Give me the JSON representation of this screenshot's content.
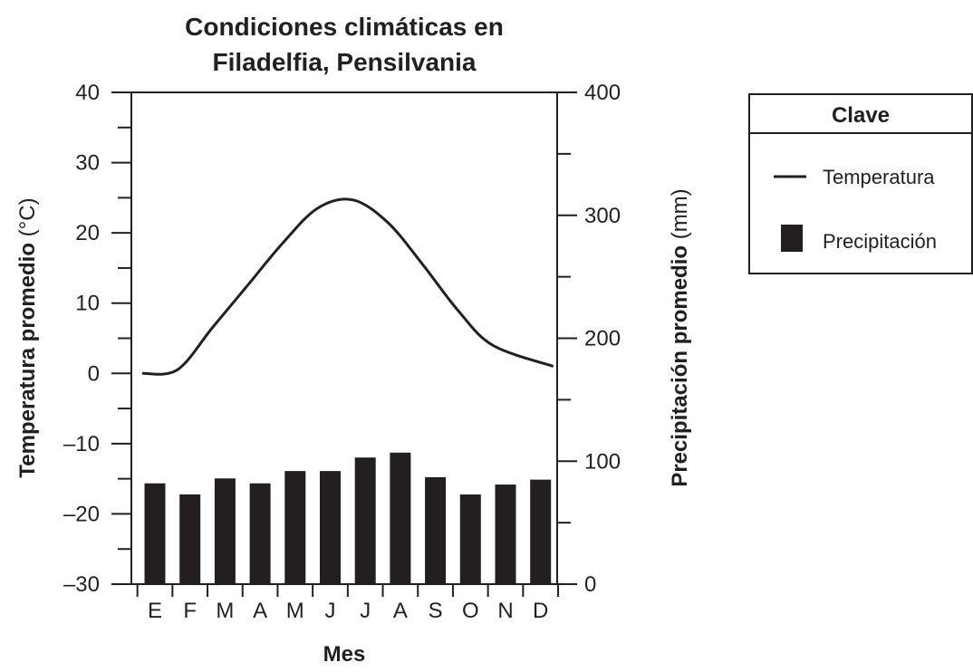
{
  "chart_data": {
    "type": "bar+line",
    "title": [
      "Condiciones climáticas en",
      "Filadelfia, Pensilvania"
    ],
    "xlabel": "Mes",
    "categories": [
      "E",
      "F",
      "M",
      "A",
      "M",
      "J",
      "J",
      "A",
      "S",
      "O",
      "N",
      "D"
    ],
    "y_left": {
      "label_bold": "Temperatura promedio",
      "label_unit": " (°C)",
      "lim": [
        -30,
        40
      ],
      "major_ticks": [
        40,
        30,
        20,
        10,
        0,
        -10,
        -20,
        -30
      ],
      "major_tick_labels": [
        "40",
        "30",
        "20",
        "10",
        "0",
        "–10",
        "–20",
        "–30"
      ],
      "minor_step": 5
    },
    "y_right": {
      "label_bold": "Precipitación promedio",
      "label_unit": " (mm)",
      "lim": [
        0,
        400
      ],
      "major_ticks": [
        0,
        100,
        200,
        300,
        400
      ],
      "major_tick_labels": [
        "0",
        "100",
        "200",
        "300",
        "400"
      ],
      "minor_step": 50
    },
    "series": [
      {
        "name": "Temperatura",
        "type": "line",
        "axis": "left",
        "values": [
          0.0,
          0.5,
          6.5,
          12.5,
          18.5,
          23.5,
          24.7,
          21.5,
          15.5,
          9.0,
          4.0,
          1.0
        ]
      },
      {
        "name": "Precipitación",
        "type": "bar",
        "axis": "right",
        "values": [
          82,
          73,
          86,
          82,
          92,
          92,
          103,
          107,
          87,
          73,
          81,
          85
        ]
      }
    ],
    "legend": {
      "title": "Clave",
      "position": "right",
      "items": [
        {
          "label": "Temperatura",
          "symbol": "line"
        },
        {
          "label": "Precipitación",
          "symbol": "bar"
        }
      ]
    },
    "grid": false
  },
  "colors": {
    "ink": "#231f20",
    "bar": "#231f20",
    "background": "#ffffff"
  }
}
